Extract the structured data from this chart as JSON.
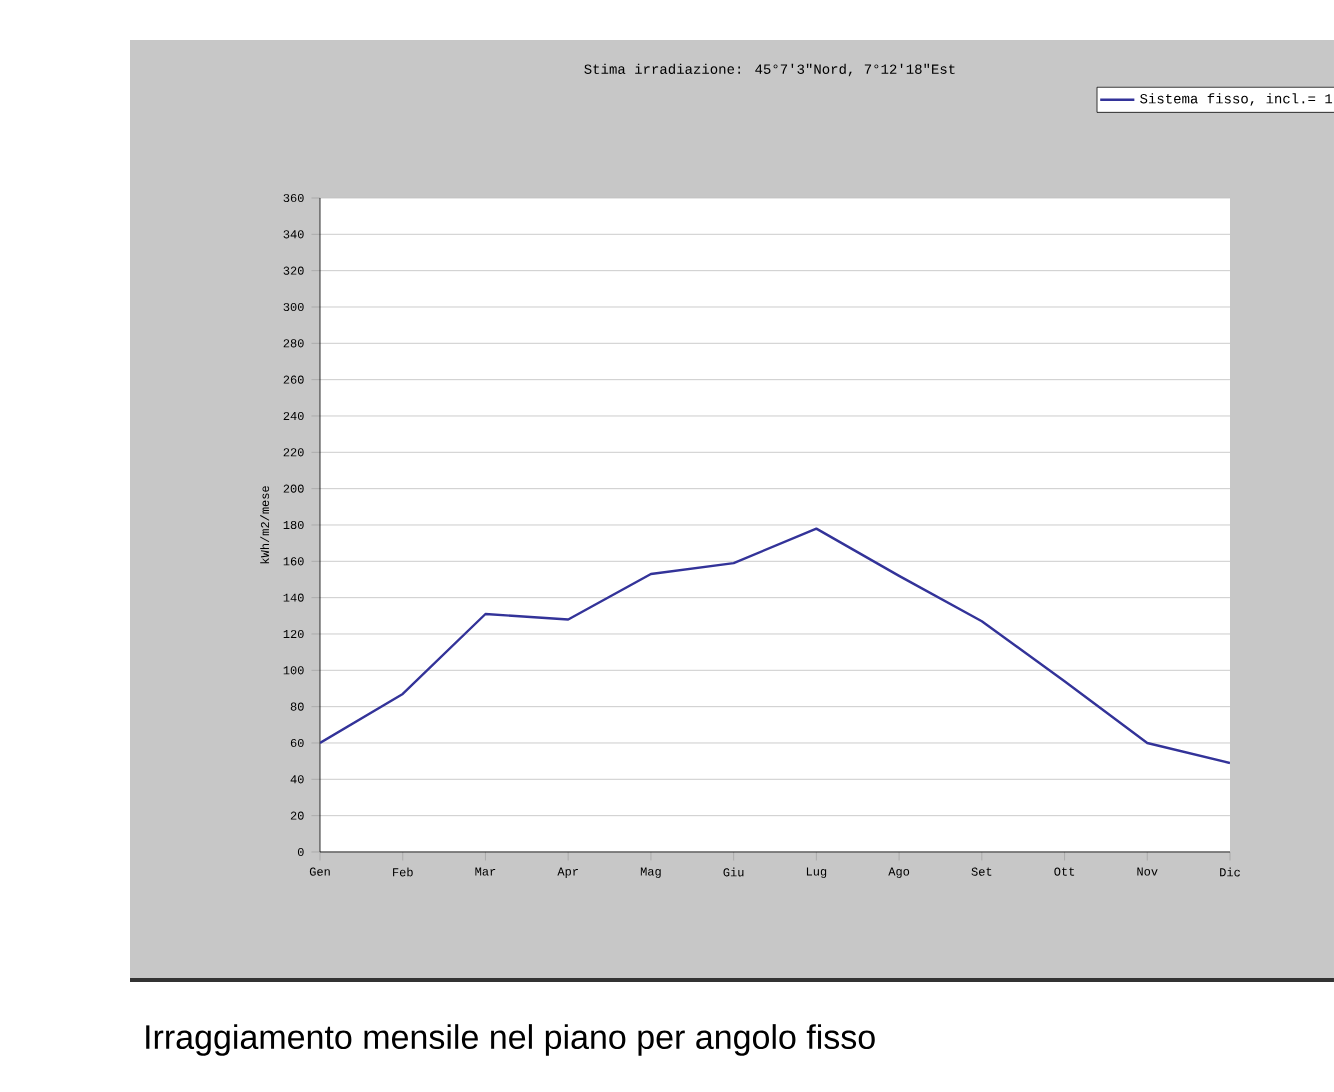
{
  "chart_data": {
    "type": "line",
    "title": "Stima irradiazione: 45°7'3\"Nord, 7°12'18\"Est",
    "ylabel": "kWh/m2/mese",
    "categories": [
      "Gen",
      "Feb",
      "Mar",
      "Apr",
      "Mag",
      "Giu",
      "Lug",
      "Ago",
      "Set",
      "Ott",
      "Nov",
      "Dic"
    ],
    "series": [
      {
        "name": "Sistema fisso, incl.= 1",
        "color": "#333399",
        "values": [
          60,
          87,
          131,
          128,
          153,
          159,
          178,
          152,
          127,
          94,
          60,
          49
        ]
      }
    ],
    "ylim": [
      0,
      360
    ],
    "yticks": [
      0,
      20,
      40,
      60,
      80,
      100,
      120,
      140,
      160,
      180,
      200,
      220,
      240,
      260,
      280,
      300,
      320,
      340,
      360
    ],
    "grid": "y",
    "legend": "top right",
    "marker": "none",
    "line_style": "solid",
    "annotations": [
      "Irraggiamento mensile nel piano per angolo fisso"
    ]
  }
}
